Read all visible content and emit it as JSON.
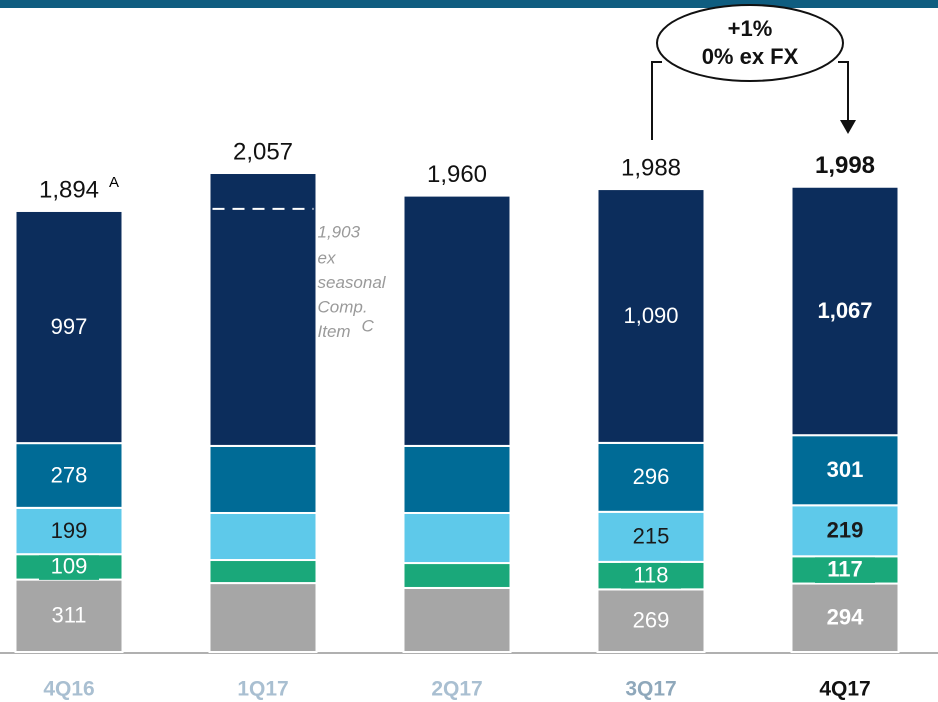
{
  "chart_data": {
    "type": "stacked_bar",
    "categories": [
      "4Q16",
      "1Q17",
      "2Q17",
      "3Q17",
      "4Q17"
    ],
    "category_colors": [
      "#a9bfd1",
      "#a9bfd1",
      "#a9bfd1",
      "#8fa8bb",
      "#111111"
    ],
    "series": [
      {
        "name": null,
        "color": "#a6a6a6",
        "text_color": "#ffffff",
        "values": [
          311,
          296,
          275,
          269,
          294
        ],
        "value_labels": [
          "311",
          null,
          null,
          "269",
          "294"
        ]
      },
      {
        "name": null,
        "color": "#1aa87a",
        "text_color": "#ffffff",
        "values": [
          109,
          99,
          107,
          118,
          117
        ],
        "value_labels": [
          "109",
          null,
          null,
          "118",
          "117"
        ]
      },
      {
        "name": null,
        "color": "#5ec9ea",
        "text_color": "#1a1a1a",
        "values": [
          199,
          202,
          215,
          215,
          219
        ],
        "value_labels": [
          "199",
          null,
          null,
          "215",
          "219"
        ]
      },
      {
        "name": null,
        "color": "#006b96",
        "text_color": "#ffffff",
        "values": [
          278,
          288,
          288,
          296,
          301
        ],
        "value_labels": [
          "278",
          null,
          null,
          "296",
          "301"
        ]
      },
      {
        "name": null,
        "color": "#0c2d5c",
        "text_color": "#ffffff",
        "values": [
          997,
          1172,
          1075,
          1090,
          1067
        ],
        "value_labels": [
          "997",
          null,
          null,
          "1,090",
          "1,067"
        ]
      }
    ],
    "totals": [
      1894,
      2057,
      1960,
      1988,
      1998
    ],
    "total_labels": [
      "1,894",
      "2,057",
      "1,960",
      "1,988",
      "1,998"
    ],
    "total_superscript": "A",
    "ylim": [
      0,
      2800
    ],
    "ex_seasonal": {
      "value": 1903,
      "label": "1,903",
      "lines": [
        "ex",
        "seasonal",
        "Comp.",
        "Item"
      ],
      "superscript": "C"
    },
    "bubble": [
      "+1%",
      "0% ex FX"
    ]
  }
}
